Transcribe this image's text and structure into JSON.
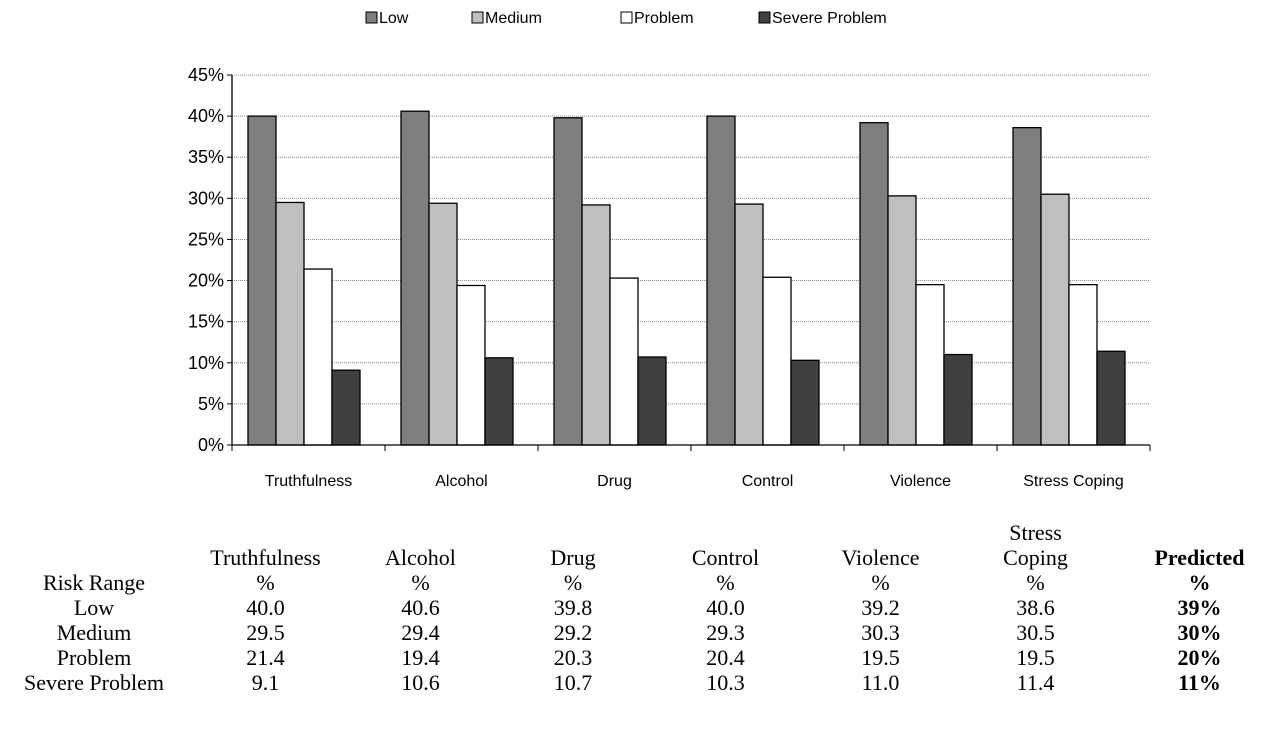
{
  "chart_data": {
    "type": "bar",
    "categories": [
      "Truthfulness",
      "Alcohol",
      "Drug",
      "Control",
      "Violence",
      "Stress Coping"
    ],
    "series": [
      {
        "name": "Low",
        "color": "#7f7f7f",
        "values": [
          40.0,
          40.6,
          39.8,
          40.0,
          39.2,
          38.6
        ]
      },
      {
        "name": "Medium",
        "color": "#bfbfbf",
        "values": [
          29.5,
          29.4,
          29.2,
          29.3,
          30.3,
          30.5
        ]
      },
      {
        "name": "Problem",
        "color": "#ffffff",
        "values": [
          21.4,
          19.4,
          20.3,
          20.4,
          19.5,
          19.5
        ]
      },
      {
        "name": "Severe Problem",
        "color": "#404040",
        "values": [
          9.1,
          10.6,
          10.7,
          10.3,
          11.0,
          11.4
        ]
      }
    ],
    "ylim": [
      0,
      45
    ],
    "yticks": [
      "0%",
      "5%",
      "10%",
      "15%",
      "20%",
      "25%",
      "30%",
      "35%",
      "40%",
      "45%"
    ],
    "grid": true,
    "legend_position": "top"
  },
  "table": {
    "header": [
      [
        "",
        "Risk Range"
      ],
      [
        "Truthfulness",
        "%"
      ],
      [
        "Alcohol",
        "%"
      ],
      [
        "Drug",
        "%"
      ],
      [
        "Control",
        "%"
      ],
      [
        "Violence",
        "%"
      ],
      [
        "Stress",
        "Coping",
        "%"
      ],
      [
        "Predicted",
        "%"
      ]
    ],
    "rows": [
      {
        "label": "Low",
        "values": [
          "40.0",
          "40.6",
          "39.8",
          "40.0",
          "39.2",
          "38.6"
        ],
        "predicted": "39%"
      },
      {
        "label": "Medium",
        "values": [
          "29.5",
          "29.4",
          "29.2",
          "29.3",
          "30.3",
          "30.5"
        ],
        "predicted": "30%"
      },
      {
        "label": "Problem",
        "values": [
          "21.4",
          "19.4",
          "20.3",
          "20.4",
          "19.5",
          "19.5"
        ],
        "predicted": "20%"
      },
      {
        "label": "Severe Problem",
        "values": [
          "9.1",
          "10.6",
          "10.7",
          "10.3",
          "11.0",
          "11.4"
        ],
        "predicted": "11%"
      }
    ]
  }
}
